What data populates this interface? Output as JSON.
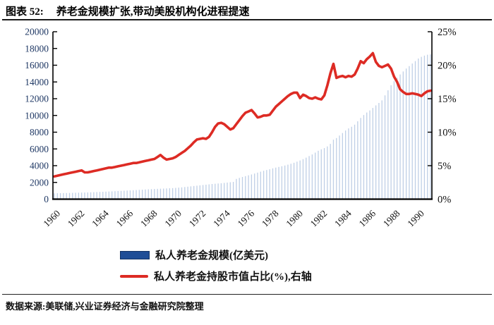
{
  "header": {
    "figure_label": "图表 52:",
    "figure_title": "养老金规模扩张,带动美股机构化进程提速"
  },
  "footer": {
    "source": "数据来源:美联储,兴业证券经济与金融研究院整理"
  },
  "colors": {
    "bar_fill": "#BFCFE6",
    "bar_legend": "#1F4E96",
    "line_red": "#DD2B24",
    "axis_black": "#000000",
    "left_tick_label": "#1F3864",
    "right_tick_label": "#111111"
  },
  "chart_data": {
    "type": "bar",
    "title": "养老金规模扩张,带动美股机构化进程提速",
    "x_unit": "quarterly",
    "x_start_year": 1960,
    "x_end_year": 1991,
    "x_tick_labels": [
      "1960",
      "1962",
      "1964",
      "1966",
      "1968",
      "1970",
      "1972",
      "1974",
      "1976",
      "1978",
      "1980",
      "1982",
      "1984",
      "1986",
      "1988",
      "1990"
    ],
    "left_axis": {
      "min": 0,
      "max": 20000,
      "step": 2000,
      "tick_labels": [
        "0",
        "2000",
        "4000",
        "6000",
        "8000",
        "10000",
        "12000",
        "14000",
        "16000",
        "18000",
        "20000"
      ]
    },
    "right_axis": {
      "min": 0,
      "max": 25,
      "step": 5,
      "tick_labels": [
        "0%",
        "5%",
        "10%",
        "15%",
        "20%",
        "25%"
      ]
    },
    "grid": false,
    "legend_position": "bottom",
    "series": [
      {
        "name": "私人养老金规模(亿美元)",
        "type": "bar",
        "axis": "left",
        "values": [
          700,
          710,
          715,
          725,
          735,
          745,
          755,
          765,
          775,
          785,
          795,
          805,
          820,
          835,
          850,
          865,
          880,
          900,
          915,
          930,
          950,
          970,
          990,
          1010,
          1030,
          1050,
          1070,
          1090,
          1110,
          1130,
          1155,
          1180,
          1200,
          1220,
          1235,
          1250,
          1265,
          1280,
          1300,
          1320,
          1345,
          1375,
          1410,
          1450,
          1490,
          1530,
          1570,
          1610,
          1650,
          1690,
          1730,
          1770,
          1810,
          1840,
          1870,
          1900,
          1940,
          1980,
          2020,
          2060,
          2420,
          2540,
          2650,
          2750,
          2850,
          2950,
          3060,
          3170,
          3280,
          3390,
          3480,
          3570,
          3680,
          3770,
          3850,
          3930,
          4020,
          4120,
          4230,
          4350,
          4480,
          4620,
          4780,
          4960,
          5150,
          5340,
          5560,
          5780,
          5950,
          6100,
          6300,
          6600,
          7100,
          7300,
          7600,
          7900,
          8200,
          8450,
          8650,
          8900,
          9300,
          9700,
          10050,
          10350,
          10600,
          10900,
          11200,
          11500,
          11800,
          12400,
          13000,
          13600,
          14100,
          14500,
          14900,
          15250,
          15600,
          15900,
          16200,
          16500,
          16800,
          17000,
          17150,
          17250,
          17300
        ]
      },
      {
        "name": "私人养老金持股市值占比(%),右轴",
        "type": "line",
        "axis": "right",
        "values": [
          3.4,
          3.5,
          3.6,
          3.7,
          3.8,
          3.9,
          4.0,
          4.1,
          4.2,
          4.3,
          4.0,
          4.0,
          4.1,
          4.2,
          4.3,
          4.4,
          4.5,
          4.6,
          4.7,
          4.7,
          4.8,
          4.9,
          5.0,
          5.1,
          5.2,
          5.3,
          5.4,
          5.4,
          5.5,
          5.6,
          5.7,
          5.8,
          5.9,
          6.0,
          6.3,
          6.6,
          6.2,
          5.9,
          6.0,
          6.1,
          6.3,
          6.6,
          6.9,
          7.2,
          7.6,
          8.0,
          8.5,
          8.9,
          9.0,
          9.1,
          9.0,
          9.3,
          10.0,
          10.8,
          11.3,
          11.4,
          11.2,
          10.8,
          10.4,
          10.6,
          11.2,
          11.8,
          12.4,
          12.9,
          13.1,
          13.3,
          12.8,
          12.2,
          12.3,
          12.5,
          12.5,
          12.6,
          13.2,
          13.8,
          14.2,
          14.6,
          15.0,
          15.4,
          15.7,
          15.9,
          15.9,
          15.1,
          15.6,
          15.4,
          15.1,
          15.0,
          15.2,
          15.0,
          14.9,
          15.5,
          17.0,
          18.8,
          20.2,
          18.1,
          18.3,
          18.4,
          18.2,
          18.4,
          18.3,
          18.6,
          19.5,
          20.6,
          20.3,
          20.9,
          21.3,
          21.8,
          20.5,
          19.9,
          19.7,
          19.9,
          20.1,
          19.5,
          18.3,
          17.5,
          16.4,
          16.0,
          15.7,
          15.7,
          15.8,
          15.7,
          15.6,
          15.4,
          15.8,
          16.1,
          16.2
        ]
      }
    ]
  }
}
